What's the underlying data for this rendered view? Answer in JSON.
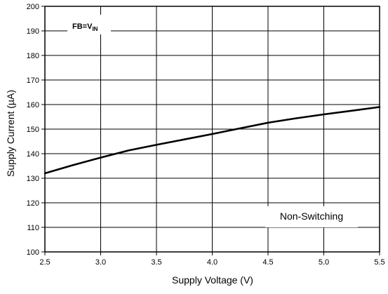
{
  "chart_data": {
    "type": "line",
    "title": "",
    "xlabel": "Supply Voltage (V)",
    "ylabel": "Supply Current (µA)",
    "xlim": [
      2.5,
      5.5
    ],
    "ylim": [
      100,
      200
    ],
    "x_ticks": [
      2.5,
      3.0,
      3.5,
      4.0,
      4.5,
      5.0,
      5.5
    ],
    "x_tick_labels": [
      "2.5",
      "3.0",
      "3.5",
      "4.0",
      "4.5",
      "5.0",
      "5.5"
    ],
    "y_ticks": [
      100,
      110,
      120,
      130,
      140,
      150,
      160,
      170,
      180,
      190,
      200
    ],
    "y_tick_labels": [
      "100",
      "110",
      "120",
      "130",
      "140",
      "150",
      "160",
      "170",
      "180",
      "190",
      "200"
    ],
    "grid": true,
    "series": [
      {
        "x": [
          2.5,
          2.75,
          3.0,
          3.25,
          3.5,
          3.75,
          4.0,
          4.25,
          4.5,
          4.75,
          5.0,
          5.25,
          5.5
        ],
        "values": [
          132.0,
          135.3,
          138.4,
          141.3,
          143.6,
          145.8,
          148.0,
          150.3,
          152.6,
          154.4,
          156.0,
          157.5,
          159.0
        ]
      }
    ],
    "annotations": {
      "condition_main": "FB=V",
      "condition_sub": "IN",
      "mode": "Non-Switching"
    },
    "colors": {
      "line": "#000000",
      "grid": "#000000",
      "background": "#ffffff"
    }
  }
}
